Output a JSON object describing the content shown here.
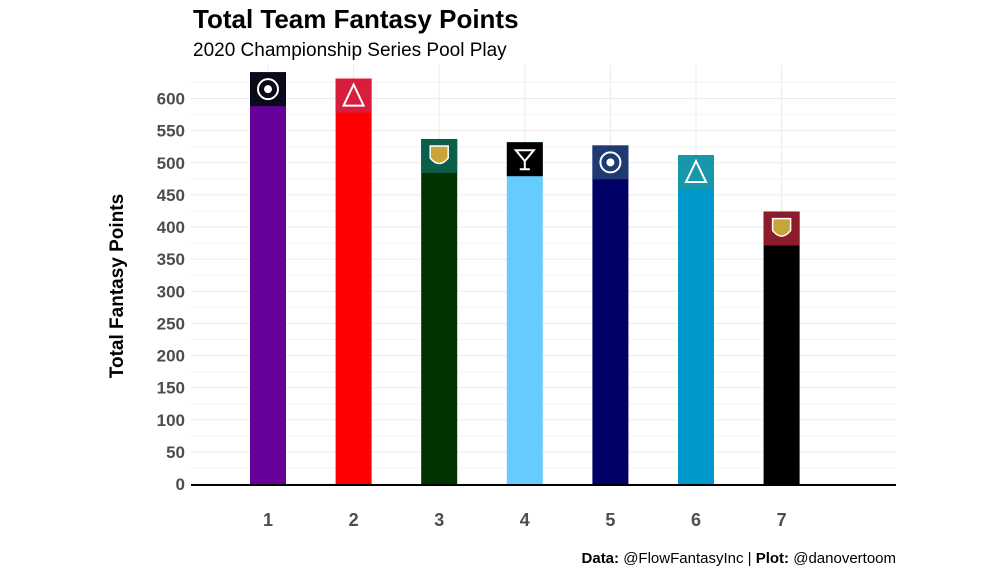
{
  "chart_data": {
    "type": "bar",
    "title": "Total Team Fantasy Points",
    "subtitle": "2020 Championship Series Pool Play",
    "ylabel": "Total Fantasy Points",
    "xlabel": "",
    "ylim": [
      0,
      640
    ],
    "yticks": [
      0,
      50,
      100,
      150,
      200,
      250,
      300,
      350,
      400,
      450,
      500,
      550,
      600
    ],
    "grid": true,
    "categories": [
      "1",
      "2",
      "3",
      "4",
      "5",
      "6",
      "7"
    ],
    "values": [
      641,
      631,
      537,
      532,
      527,
      512,
      424
    ],
    "bar_colors": [
      "#660099",
      "#FF0000",
      "#003300",
      "#66CCFF",
      "#000066",
      "#0099CC",
      "#000000"
    ],
    "logo_colors": [
      "#0a0a1a",
      "#d81e3c",
      "#0b5e4a",
      "#000000",
      "#1f3a70",
      "#1798a8",
      "#8c1c2c"
    ],
    "logo_icons": [
      "purple-mascot-icon",
      "red-mascot-icon",
      "green-crest-icon",
      "cocktail-icon",
      "a-shield-icon",
      "wolf-icon",
      "spartan-icon"
    ]
  },
  "caption": {
    "data_label": "Data:",
    "data_source": "@FlowFantasyInc",
    "separator": "|",
    "plot_label": "Plot:",
    "plot_author": "@danovertoom"
  }
}
